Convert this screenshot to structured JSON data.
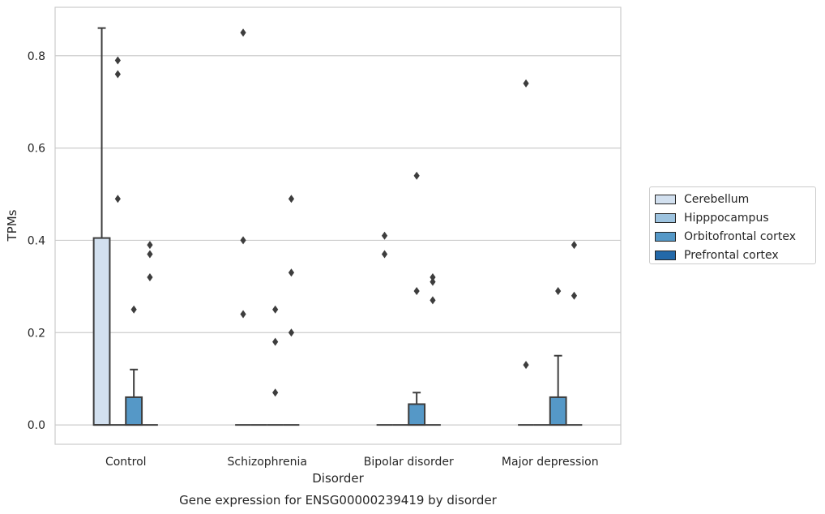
{
  "chart_data": {
    "type": "box",
    "title": "Gene expression for ENSG00000239419 by disorder",
    "xlabel": "Disorder",
    "ylabel": "TPMs",
    "ylim": [
      -0.042,
      0.905
    ],
    "yticks": [
      "0.0",
      "0.2",
      "0.4",
      "0.6",
      "0.8"
    ],
    "categories": [
      "Control",
      "Schizophrenia",
      "Bipolar disorder",
      "Major depression"
    ],
    "grid": "horizontal",
    "legend_position": "right",
    "series": [
      {
        "name": "Cerebellum",
        "color": "#d2e0ef",
        "boxes": [
          {
            "q1": 0,
            "median": 0,
            "q3": 0.405,
            "whisker_low": 0,
            "whisker_high": 0.86,
            "outliers": []
          },
          {
            "q1": 0,
            "median": 0,
            "q3": 0,
            "whisker_low": 0,
            "whisker_high": 0,
            "outliers": [
              0.85,
              0.4,
              0.24
            ]
          },
          {
            "q1": 0,
            "median": 0,
            "q3": 0,
            "whisker_low": 0,
            "whisker_high": 0,
            "outliers": [
              0.41,
              0.37
            ]
          },
          {
            "q1": 0,
            "median": 0,
            "q3": 0,
            "whisker_low": 0,
            "whisker_high": 0,
            "outliers": [
              0.74,
              0.13
            ]
          }
        ]
      },
      {
        "name": "Hipppocampus",
        "color": "#9dc3df",
        "boxes": [
          {
            "q1": 0,
            "median": 0,
            "q3": 0,
            "whisker_low": 0,
            "whisker_high": 0,
            "outliers": [
              0.79,
              0.76,
              0.49
            ]
          },
          {
            "q1": 0,
            "median": 0,
            "q3": 0,
            "whisker_low": 0,
            "whisker_high": 0,
            "outliers": []
          },
          {
            "q1": 0,
            "median": 0,
            "q3": 0,
            "whisker_low": 0,
            "whisker_high": 0,
            "outliers": []
          },
          {
            "q1": 0,
            "median": 0,
            "q3": 0,
            "whisker_low": 0,
            "whisker_high": 0,
            "outliers": []
          }
        ]
      },
      {
        "name": "Orbitofrontal cortex",
        "color": "#5598c7",
        "boxes": [
          {
            "q1": 0,
            "median": 0,
            "q3": 0.06,
            "whisker_low": 0,
            "whisker_high": 0.12,
            "outliers": [
              0.25
            ]
          },
          {
            "q1": 0,
            "median": 0,
            "q3": 0,
            "whisker_low": 0,
            "whisker_high": 0,
            "outliers": [
              0.25,
              0.18,
              0.07
            ]
          },
          {
            "q1": 0,
            "median": 0,
            "q3": 0.045,
            "whisker_low": 0,
            "whisker_high": 0.07,
            "outliers": [
              0.54,
              0.29
            ]
          },
          {
            "q1": 0,
            "median": 0,
            "q3": 0.06,
            "whisker_low": 0,
            "whisker_high": 0.15,
            "outliers": [
              0.29
            ]
          }
        ]
      },
      {
        "name": "Prefrontal cortex",
        "color": "#2369a9",
        "boxes": [
          {
            "q1": 0,
            "median": 0,
            "q3": 0,
            "whisker_low": 0,
            "whisker_high": 0,
            "outliers": [
              0.39,
              0.37,
              0.32
            ]
          },
          {
            "q1": 0,
            "median": 0,
            "q3": 0,
            "whisker_low": 0,
            "whisker_high": 0,
            "outliers": [
              0.49,
              0.33,
              0.2
            ]
          },
          {
            "q1": 0,
            "median": 0,
            "q3": 0,
            "whisker_low": 0,
            "whisker_high": 0,
            "outliers": [
              0.32,
              0.31,
              0.27
            ]
          },
          {
            "q1": 0,
            "median": 0,
            "q3": 0,
            "whisker_low": 0,
            "whisker_high": 0,
            "outliers": [
              0.39,
              0.28
            ]
          }
        ]
      }
    ]
  }
}
